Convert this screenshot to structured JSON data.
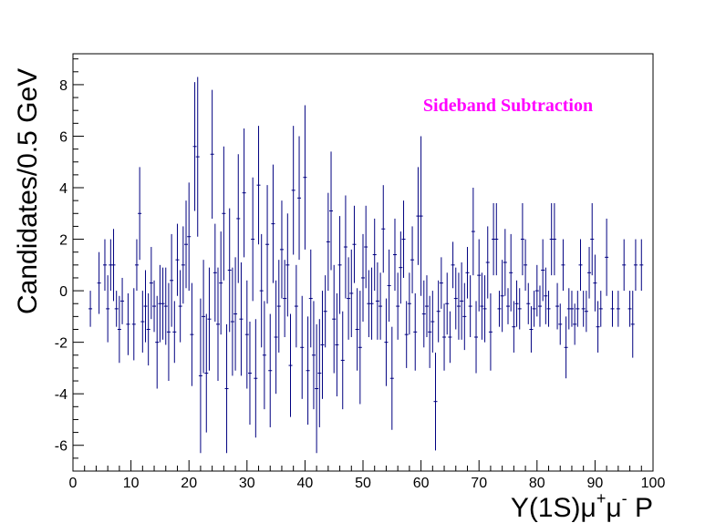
{
  "chart_data": {
    "type": "scatter",
    "title": "",
    "xlabel": {
      "prefix": "Υ(1S)μ",
      "sup1": "+",
      "mid": "μ",
      "sup2": "-",
      "suffix": " P"
    },
    "ylabel": "Candidates/0.5 GeV",
    "xlim": [
      0,
      100
    ],
    "ylim": [
      -7,
      9.2
    ],
    "x_ticks": [
      0,
      10,
      20,
      30,
      40,
      50,
      60,
      70,
      80,
      90,
      100
    ],
    "y_ticks": [
      -6,
      -4,
      -2,
      0,
      2,
      4,
      6,
      8
    ],
    "grid": false,
    "annotation": {
      "text": "Sideband Subtraction",
      "color": "#ff00ff"
    },
    "marker_color": "#000080",
    "series": [
      {
        "style": "points-with-errorbars",
        "points": [
          [
            3.0,
            -0.7,
            0.7
          ],
          [
            4.5,
            0.3,
            1.2
          ],
          [
            5.5,
            1.0,
            1.0
          ],
          [
            6.0,
            -0.7,
            1.3
          ],
          [
            6.5,
            1.0,
            1.0
          ],
          [
            7.0,
            1.0,
            1.4
          ],
          [
            7.5,
            -0.7,
            0.7
          ],
          [
            8.0,
            -1.5,
            1.3
          ],
          [
            8.5,
            -0.4,
            0.9
          ],
          [
            9.5,
            -1.3,
            1.2
          ],
          [
            10.5,
            -1.3,
            1.4
          ],
          [
            11.0,
            1.0,
            1.0
          ],
          [
            11.5,
            3.0,
            1.8
          ],
          [
            12.0,
            -1.2,
            1.2
          ],
          [
            12.5,
            -0.6,
            1.4
          ],
          [
            13.0,
            -1.5,
            1.4
          ],
          [
            13.5,
            0.3,
            1.4
          ],
          [
            14.0,
            -0.6,
            1.0
          ],
          [
            14.5,
            -2.0,
            1.8
          ],
          [
            15.0,
            -0.5,
            1.5
          ],
          [
            15.5,
            -0.5,
            1.4
          ],
          [
            16.0,
            -0.6,
            1.5
          ],
          [
            16.5,
            -1.6,
            1.9
          ],
          [
            17.0,
            0.4,
            1.8
          ],
          [
            17.5,
            -1.6,
            1.2
          ],
          [
            18.0,
            1.2,
            1.4
          ],
          [
            18.5,
            -0.6,
            1.4
          ],
          [
            19.0,
            1.0,
            1.5
          ],
          [
            19.5,
            1.8,
            1.7
          ],
          [
            20.0,
            2.1,
            2.1
          ],
          [
            20.5,
            -1.7,
            2.0
          ],
          [
            21.0,
            5.6,
            2.5
          ],
          [
            21.5,
            5.2,
            3.1
          ],
          [
            22.0,
            -3.3,
            3.0
          ],
          [
            22.5,
            -1.0,
            2.2
          ],
          [
            23.0,
            -3.2,
            2.3
          ],
          [
            23.5,
            -1.1,
            2.0
          ],
          [
            24.0,
            5.3,
            2.5
          ],
          [
            24.5,
            0.7,
            1.9
          ],
          [
            25.0,
            -1.3,
            2.2
          ],
          [
            25.5,
            0.3,
            2.0
          ],
          [
            26.0,
            3.0,
            2.6
          ],
          [
            26.5,
            -3.8,
            2.5
          ],
          [
            27.0,
            0.8,
            2.4
          ],
          [
            27.5,
            -1.2,
            2.1
          ],
          [
            28.0,
            -0.9,
            2.2
          ],
          [
            28.5,
            2.8,
            2.5
          ],
          [
            29.0,
            -1.1,
            2.2
          ],
          [
            29.5,
            3.8,
            2.5
          ],
          [
            30.0,
            -1.7,
            2.1
          ],
          [
            30.5,
            -3.2,
            2.0
          ],
          [
            31.0,
            2.0,
            2.4
          ],
          [
            31.5,
            -3.4,
            2.3
          ],
          [
            32.0,
            4.1,
            2.3
          ],
          [
            32.5,
            0.0,
            2.2
          ],
          [
            33.0,
            -2.5,
            2.1
          ],
          [
            33.5,
            1.8,
            2.3
          ],
          [
            34.0,
            -3.1,
            2.2
          ],
          [
            34.5,
            2.6,
            2.3
          ],
          [
            35.0,
            -1.8,
            2.2
          ],
          [
            35.5,
            -0.6,
            1.8
          ],
          [
            36.0,
            1.6,
            1.9
          ],
          [
            36.5,
            -0.3,
            1.5
          ],
          [
            37.0,
            1.0,
            2.0
          ],
          [
            37.5,
            -2.9,
            2.0
          ],
          [
            38.0,
            3.9,
            2.5
          ],
          [
            38.5,
            -0.6,
            1.6
          ],
          [
            39.0,
            3.6,
            2.4
          ],
          [
            39.5,
            -2.2,
            2.0
          ],
          [
            40.0,
            4.4,
            2.8
          ],
          [
            40.5,
            -3.1,
            2.1
          ],
          [
            41.0,
            -0.3,
            1.9
          ],
          [
            41.5,
            -2.5,
            2.1
          ],
          [
            42.0,
            -3.8,
            2.5
          ],
          [
            42.5,
            -3.2,
            2.1
          ],
          [
            43.0,
            -2.1,
            2.1
          ],
          [
            43.5,
            -0.8,
            1.4
          ],
          [
            44.0,
            1.9,
            1.9
          ],
          [
            44.5,
            3.1,
            2.3
          ],
          [
            45.0,
            -1.1,
            2.1
          ],
          [
            45.5,
            -2.1,
            2.0
          ],
          [
            46.0,
            1.0,
            1.9
          ],
          [
            46.5,
            -2.7,
            1.9
          ],
          [
            47.0,
            1.7,
            2.0
          ],
          [
            47.5,
            -0.3,
            1.6
          ],
          [
            48.0,
            -0.1,
            1.7
          ],
          [
            48.5,
            1.8,
            1.5
          ],
          [
            49.0,
            -1.5,
            1.6
          ],
          [
            49.5,
            -2.2,
            2.2
          ],
          [
            50.0,
            0.5,
            1.7
          ],
          [
            50.5,
            1.7,
            1.6
          ],
          [
            51.0,
            -0.5,
            1.3
          ],
          [
            51.5,
            -0.5,
            1.4
          ],
          [
            52.0,
            1.4,
            1.4
          ],
          [
            52.5,
            -0.4,
            1.5
          ],
          [
            53.0,
            -0.6,
            1.3
          ],
          [
            53.5,
            2.4,
            1.7
          ],
          [
            54.0,
            -2.0,
            1.7
          ],
          [
            54.5,
            0.2,
            1.4
          ],
          [
            55.0,
            -3.4,
            2.0
          ],
          [
            55.5,
            1.4,
            1.4
          ],
          [
            56.0,
            -0.6,
            1.3
          ],
          [
            56.5,
            0.9,
            1.4
          ],
          [
            57.0,
            2.0,
            1.5
          ],
          [
            57.5,
            -1.7,
            1.3
          ],
          [
            58.0,
            -0.5,
            1.2
          ],
          [
            58.5,
            1.2,
            1.3
          ],
          [
            59.0,
            -1.6,
            1.5
          ],
          [
            59.5,
            2.9,
            1.9
          ],
          [
            60.0,
            2.9,
            3.1
          ],
          [
            60.5,
            -0.9,
            1.3
          ],
          [
            61.0,
            -0.6,
            1.2
          ],
          [
            61.5,
            -1.6,
            1.4
          ],
          [
            62.0,
            -1.2,
            1.2
          ],
          [
            62.5,
            -4.3,
            1.9
          ],
          [
            63.0,
            -0.8,
            1.2
          ],
          [
            63.5,
            0.3,
            1.0
          ],
          [
            64.0,
            -1.8,
            1.3
          ],
          [
            64.5,
            -0.5,
            1.2
          ],
          [
            65.0,
            -1.8,
            1.0
          ],
          [
            65.5,
            1.0,
            0.9
          ],
          [
            66.0,
            -0.3,
            1.2
          ],
          [
            66.5,
            -0.6,
            1.3
          ],
          [
            67.0,
            -0.4,
            1.5
          ],
          [
            67.5,
            -1.0,
            1.3
          ],
          [
            68.0,
            0.7,
            1.0
          ],
          [
            68.5,
            -0.6,
            1.2
          ],
          [
            69.0,
            2.3,
            1.7
          ],
          [
            69.5,
            -1.8,
            1.4
          ],
          [
            70.0,
            0.6,
            1.4
          ],
          [
            70.5,
            -0.6,
            1.3
          ],
          [
            71.0,
            -0.7,
            1.3
          ],
          [
            71.5,
            1.1,
            1.4
          ],
          [
            72.0,
            -1.6,
            1.5
          ],
          [
            72.5,
            2.0,
            1.4
          ],
          [
            73.0,
            2.0,
            1.4
          ],
          [
            73.5,
            -0.7,
            0.7
          ],
          [
            74.0,
            -0.2,
            1.4
          ],
          [
            74.5,
            1.1,
            1.3
          ],
          [
            75.0,
            -0.6,
            0.7
          ],
          [
            75.5,
            0.7,
            1.5
          ],
          [
            76.0,
            -1.4,
            1.0
          ],
          [
            76.5,
            -0.5,
            0.9
          ],
          [
            77.0,
            -0.7,
            0.8
          ],
          [
            77.5,
            2.0,
            1.4
          ],
          [
            78.0,
            1.0,
            1.0
          ],
          [
            78.5,
            -0.5,
            0.8
          ],
          [
            79.0,
            -1.5,
            0.9
          ],
          [
            79.5,
            -0.7,
            0.7
          ],
          [
            80.0,
            0.0,
            1.0
          ],
          [
            80.5,
            -0.6,
            0.8
          ],
          [
            81.0,
            0.8,
            1.2
          ],
          [
            81.5,
            -0.2,
            1.1
          ],
          [
            82.0,
            -0.7,
            0.7
          ],
          [
            82.5,
            2.0,
            1.4
          ],
          [
            83.0,
            2.0,
            1.4
          ],
          [
            83.5,
            -0.6,
            0.9
          ],
          [
            84.0,
            -1.3,
            0.8
          ],
          [
            84.5,
            1.0,
            1.0
          ],
          [
            85.0,
            -2.2,
            1.2
          ],
          [
            85.5,
            -0.7,
            0.8
          ],
          [
            86.0,
            -0.7,
            0.7
          ],
          [
            86.5,
            -1.3,
            0.8
          ],
          [
            87.0,
            -0.7,
            0.7
          ],
          [
            87.5,
            1.0,
            1.0
          ],
          [
            88.0,
            -0.7,
            0.7
          ],
          [
            88.5,
            -0.8,
            0.8
          ],
          [
            89.0,
            0.7,
            1.0
          ],
          [
            89.5,
            2.0,
            1.4
          ],
          [
            90.0,
            0.3,
            1.1
          ],
          [
            90.5,
            -1.4,
            1.0
          ],
          [
            91.0,
            -0.7,
            0.7
          ],
          [
            92.0,
            1.3,
            1.5
          ],
          [
            93.0,
            -0.7,
            0.7
          ],
          [
            94.0,
            -0.7,
            0.7
          ],
          [
            95.0,
            1.0,
            1.0
          ],
          [
            96.0,
            -0.7,
            0.7
          ],
          [
            96.5,
            -1.3,
            1.3
          ],
          [
            97.0,
            1.0,
            1.0
          ],
          [
            98.0,
            1.0,
            1.0
          ]
        ]
      }
    ]
  }
}
